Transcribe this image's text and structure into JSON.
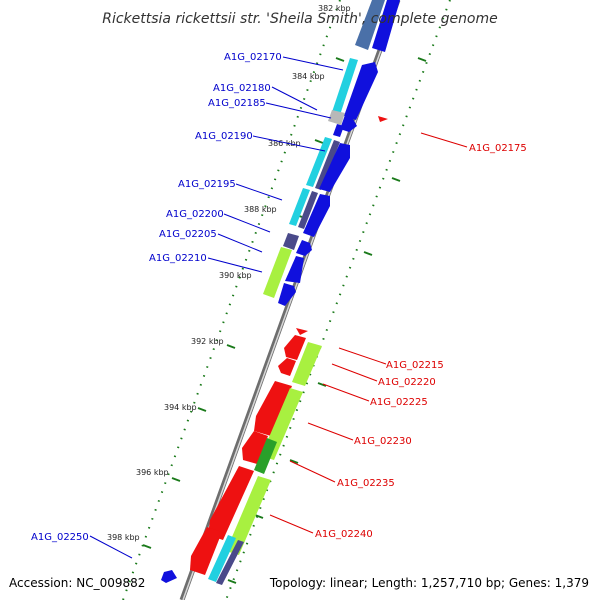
{
  "header": {
    "title": "Rickettsia rickettsii str. 'Sheila Smith', complete genome"
  },
  "footer": {
    "accession": "Accession: NC_009882",
    "summary": "Topology: linear; Length: 1,257,710 bp; Genes: 1,379"
  },
  "colors": {
    "backbone": "#7a7a7a",
    "forward_label": "#0000cc",
    "reverse_label": "#dd0000",
    "tick": "#1a7a1a",
    "cds_blue": "#1010dd",
    "cds_red": "#ee1111",
    "cds_cyan": "#22d0e0",
    "cds_slate": "#4a4a8a",
    "cds_lime": "#a8f040",
    "cds_green": "#2aa02a",
    "cds_grey": "#b8b8b8",
    "cds_steel": "#4a70a8"
  },
  "ticks": [
    {
      "label": "382 kbp"
    },
    {
      "label": "384 kbp"
    },
    {
      "label": "386 kbp"
    },
    {
      "label": "388 kbp"
    },
    {
      "label": "390 kbp"
    },
    {
      "label": "392 kbp"
    },
    {
      "label": "394 kbp"
    },
    {
      "label": "396 kbp"
    },
    {
      "label": "398 kbp"
    }
  ],
  "forward_labels": [
    {
      "text": "A1G_02170"
    },
    {
      "text": "A1G_02180"
    },
    {
      "text": "A1G_02185"
    },
    {
      "text": "A1G_02190"
    },
    {
      "text": "A1G_02195"
    },
    {
      "text": "A1G_02200"
    },
    {
      "text": "A1G_02205"
    },
    {
      "text": "A1G_02210"
    },
    {
      "text": "A1G_02250"
    }
  ],
  "reverse_labels": [
    {
      "text": "A1G_02175"
    },
    {
      "text": "A1G_02215"
    },
    {
      "text": "A1G_02220"
    },
    {
      "text": "A1G_02225"
    },
    {
      "text": "A1G_02230"
    },
    {
      "text": "A1G_02235"
    },
    {
      "text": "A1G_02240"
    }
  ]
}
